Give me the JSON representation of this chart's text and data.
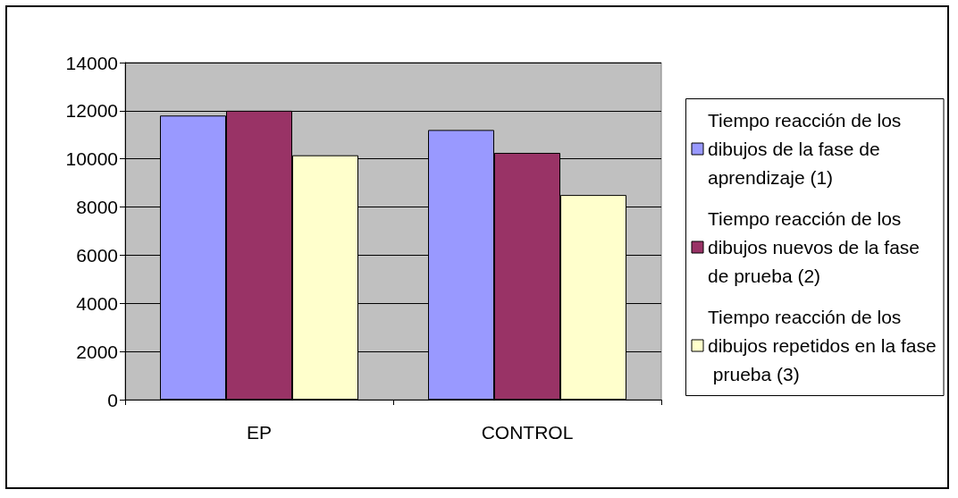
{
  "chart_data": {
    "type": "bar",
    "categories": [
      "EP",
      "CONTROL"
    ],
    "series": [
      {
        "name": "Tiempo reacción de los dibujos de la fase de aprendizaje (1)",
        "color": "#9999ff",
        "values": [
          11800,
          11200
        ]
      },
      {
        "name": "Tiempo reacción de los dibujos nuevos de la fase de prueba (2)",
        "color": "#993366",
        "values": [
          12000,
          10250
        ]
      },
      {
        "name": "Tiempo reacción de los dibujos repetidos en la fase prueba (3)",
        "color": "#ffffcc",
        "values": [
          10150,
          8500
        ]
      }
    ],
    "ylim": [
      0,
      14000
    ],
    "yticks": [
      0,
      2000,
      4000,
      6000,
      8000,
      10000,
      12000,
      14000
    ],
    "grid": "y",
    "legend": "right"
  }
}
